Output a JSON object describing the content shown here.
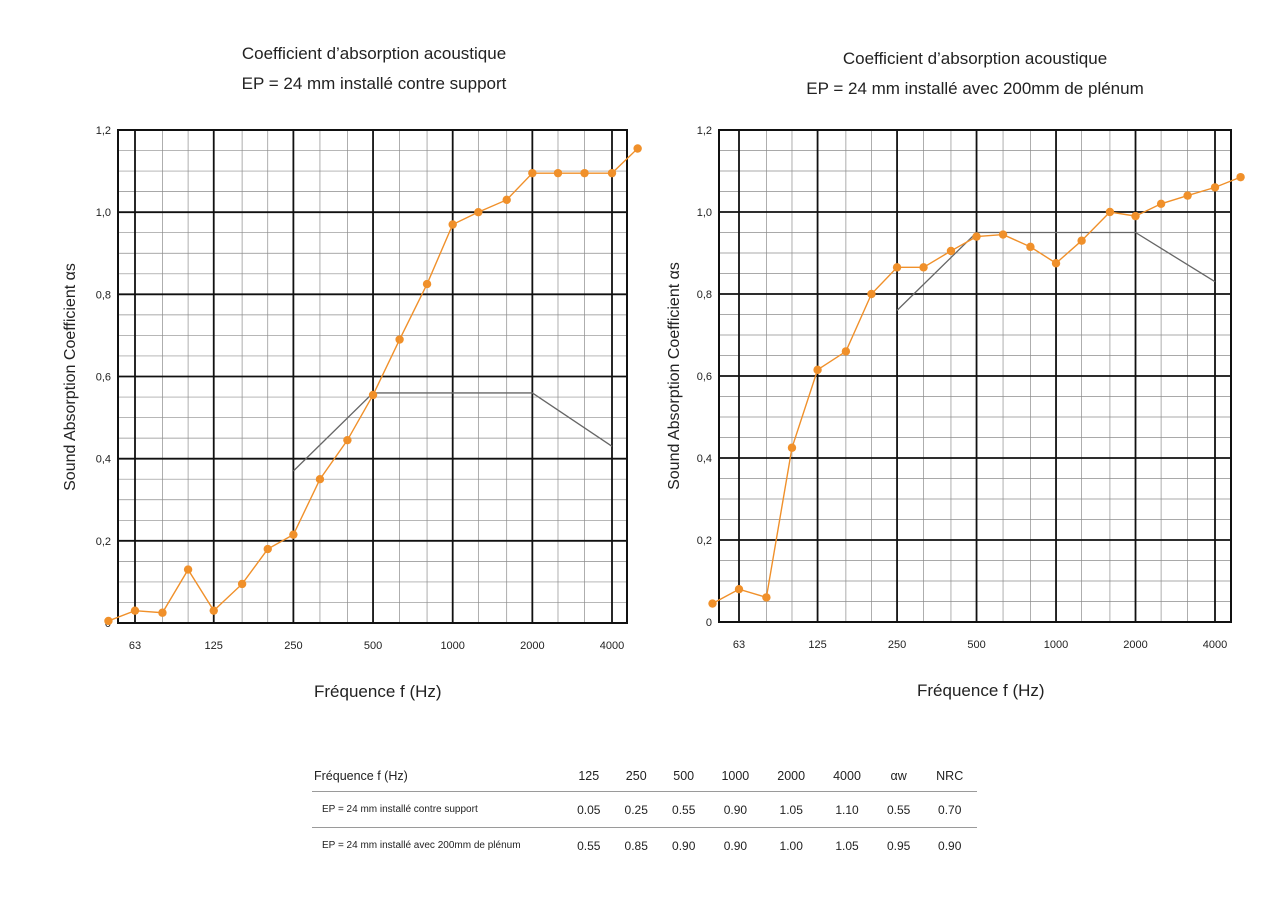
{
  "chart_data": [
    {
      "type": "line",
      "title": "Coefficient d’absorption acoustique",
      "subtitle": "EP = 24 mm  installé contre support",
      "xlabel": "Fréquence f (Hz)",
      "ylabel": "Sound Absorption Coefficient  αs",
      "x_scale": "log",
      "x_tick_labels": [
        "63",
        "125",
        "250",
        "500",
        "1000",
        "2000",
        "4000"
      ],
      "x_tick_values": [
        63,
        125,
        250,
        500,
        1000,
        2000,
        4000
      ],
      "y_tick_labels": [
        "0",
        "0,2",
        "0,4",
        "0,6",
        "0,8",
        "1,0",
        "1,2"
      ],
      "y_tick_values": [
        0,
        0.2,
        0.4,
        0.6,
        0.8,
        1.0,
        1.2
      ],
      "ylim": [
        0,
        1.2
      ],
      "grid": true,
      "series": [
        {
          "x": [
            50,
            63,
            80,
            100,
            125,
            160,
            200,
            250,
            315,
            400,
            500,
            630,
            800,
            1000,
            1250,
            1600,
            2000,
            2500,
            3150,
            4000,
            5000
          ],
          "values": [
            0.005,
            0.03,
            0.025,
            0.13,
            0.03,
            0.095,
            0.18,
            0.215,
            0.35,
            0.445,
            0.555,
            0.69,
            0.825,
            0.97,
            1.0,
            1.03,
            1.095,
            1.095,
            1.095,
            1.095,
            1.155
          ],
          "color": "#f0902a"
        },
        {
          "x": [
            250,
            500,
            2000,
            4000
          ],
          "values": [
            0.37,
            0.56,
            0.56,
            0.43
          ],
          "color": "#666666"
        }
      ]
    },
    {
      "type": "line",
      "title": "Coefficient d’absorption acoustique",
      "subtitle": "EP = 24 mm  installé  avec  200mm de plénum",
      "xlabel": "Fréquence f (Hz)",
      "ylabel": "Sound Absorption Coefficient  αs",
      "x_scale": "log",
      "x_tick_labels": [
        "63",
        "125",
        "250",
        "500",
        "1000",
        "2000",
        "4000"
      ],
      "x_tick_values": [
        63,
        125,
        250,
        500,
        1000,
        2000,
        4000
      ],
      "y_tick_labels": [
        "0",
        "0,2",
        "0,4",
        "0,6",
        "0,8",
        "1,0",
        "1,2"
      ],
      "y_tick_values": [
        0,
        0.2,
        0.4,
        0.6,
        0.8,
        1.0,
        1.2
      ],
      "ylim": [
        0,
        1.2
      ],
      "grid": true,
      "series": [
        {
          "x": [
            50,
            63,
            80,
            100,
            125,
            160,
            200,
            250,
            315,
            400,
            500,
            630,
            800,
            1000,
            1250,
            1600,
            2000,
            2500,
            3150,
            4000,
            5000
          ],
          "values": [
            0.045,
            0.08,
            0.06,
            0.425,
            0.615,
            0.66,
            0.8,
            0.865,
            0.865,
            0.905,
            0.94,
            0.945,
            0.915,
            0.875,
            0.93,
            1.0,
            0.99,
            1.02,
            1.04,
            1.06,
            1.085
          ],
          "color": "#f0902a"
        },
        {
          "x": [
            250,
            500,
            2000,
            4000
          ],
          "values": [
            0.76,
            0.95,
            0.95,
            0.83
          ],
          "color": "#666666"
        }
      ]
    }
  ],
  "table": {
    "header": [
      "Fréquence f (Hz)",
      "125",
      "250",
      "500",
      "1000",
      "2000",
      "4000",
      "αw",
      "NRC"
    ],
    "rows": [
      [
        "EP = 24 mm  installé contre support",
        "0.05",
        "0.25",
        "0.55",
        "0.90",
        "1.05",
        "1.10",
        "0.55",
        "0.70"
      ],
      [
        "EP = 24 mm  installé  avec  200mm de plénum",
        "0.55",
        "0.85",
        "0.90",
        "0.90",
        "1.00",
        "1.05",
        "0.95",
        "0.90"
      ]
    ]
  }
}
